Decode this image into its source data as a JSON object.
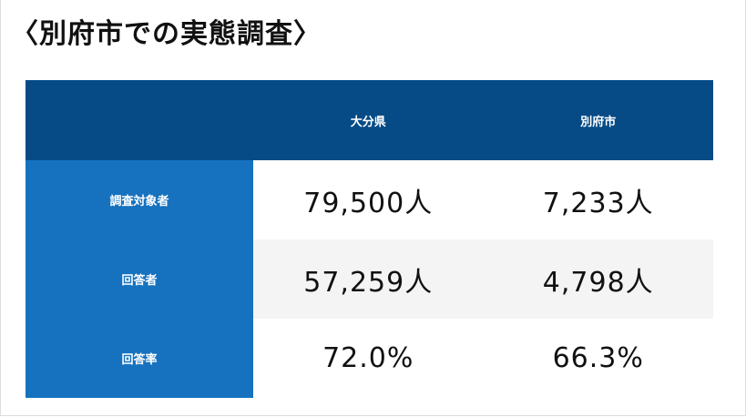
{
  "header": {
    "title": "〈別府市での実態調査〉"
  },
  "table": {
    "columns": [
      "大分県",
      "別府市"
    ],
    "rows": [
      [
        "調査対象者",
        "79,500人",
        "7,233人"
      ],
      [
        "回答者",
        "57,259人",
        "4,798人"
      ],
      [
        "回答率",
        "72.0%",
        "66.3%"
      ]
    ]
  }
}
